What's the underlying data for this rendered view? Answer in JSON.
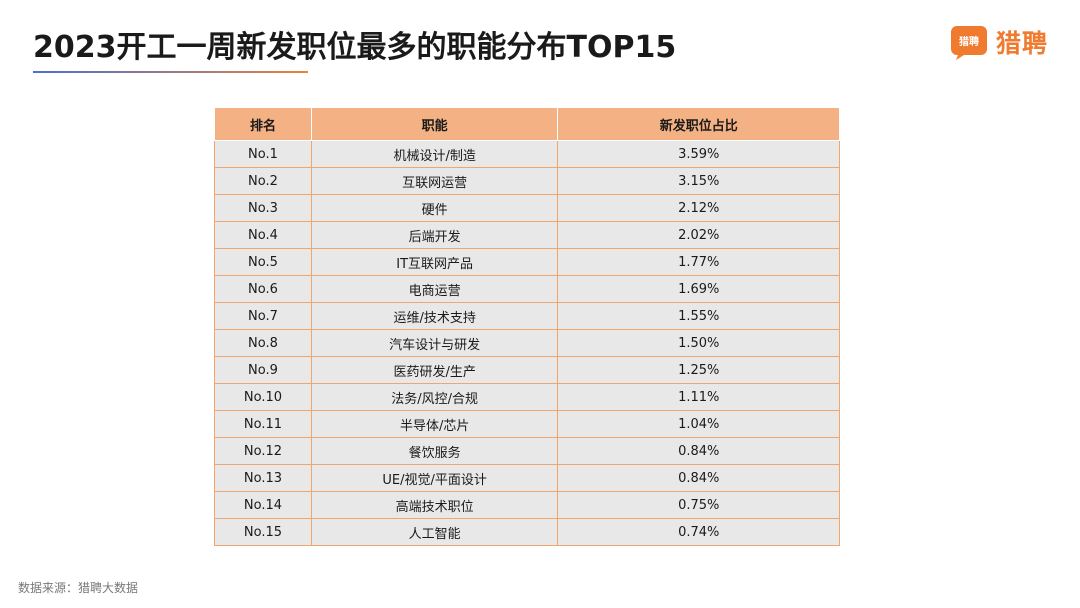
{
  "header": {
    "title": "2023开工一周新发职位最多的职能分布TOP15",
    "logo_badge_text": "猎聘",
    "logo_text": "猎聘"
  },
  "colors": {
    "accent_orange": "#f07a2e",
    "header_fill": "#f4b183",
    "row_fill": "#e8e8e8",
    "underline_start": "#4a6fd6",
    "underline_end": "#e8833a"
  },
  "chart_data": {
    "type": "table",
    "columns": [
      "排名",
      "职能",
      "新发职位占比"
    ],
    "rows": [
      [
        "No.1",
        "机械设计/制造",
        "3.59%"
      ],
      [
        "No.2",
        "互联网运营",
        "3.15%"
      ],
      [
        "No.3",
        "硬件",
        "2.12%"
      ],
      [
        "No.4",
        "后端开发",
        "2.02%"
      ],
      [
        "No.5",
        "IT互联网产品",
        "1.77%"
      ],
      [
        "No.6",
        "电商运营",
        "1.69%"
      ],
      [
        "No.7",
        "运维/技术支持",
        "1.55%"
      ],
      [
        "No.8",
        "汽车设计与研发",
        "1.50%"
      ],
      [
        "No.9",
        "医药研发/生产",
        "1.25%"
      ],
      [
        "No.10",
        "法务/风控/合规",
        "1.11%"
      ],
      [
        "No.11",
        "半导体/芯片",
        "1.04%"
      ],
      [
        "No.12",
        "餐饮服务",
        "0.84%"
      ],
      [
        "No.13",
        "UE/视觉/平面设计",
        "0.84%"
      ],
      [
        "No.14",
        "高端技术职位",
        "0.75%"
      ],
      [
        "No.15",
        "人工智能",
        "0.74%"
      ]
    ]
  },
  "footer": {
    "source": "数据来源：猎聘大数据"
  }
}
